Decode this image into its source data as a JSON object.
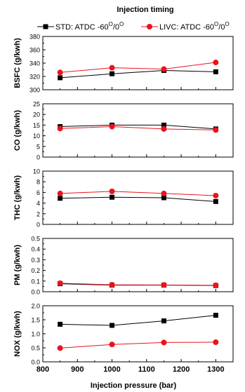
{
  "chart_data": {
    "type": "line",
    "legend": {
      "title": "Injection timing",
      "placement": "top",
      "series": [
        {
          "label": "STD: ATDC -60",
          "sup1": "O",
          "mid": "/0",
          "sup2": "O"
        },
        {
          "label": "LIVC: ATDC -60",
          "sup1": "O",
          "mid": "/0",
          "sup2": "O"
        }
      ]
    },
    "xlabel": "Injection pressure (bar)",
    "xlim": [
      800,
      1350
    ],
    "xticks": [
      "800",
      "900",
      "1000",
      "1100",
      "1200",
      "1300"
    ],
    "x": [
      850,
      1000,
      1150,
      1300
    ],
    "colors": {
      "std": "#000000",
      "livc": "#e8141c"
    },
    "grid": false,
    "panels": [
      {
        "ylabel": "BSFC (g/kwh)",
        "ylim": [
          300,
          380
        ],
        "yticks": [
          "300",
          "320",
          "340",
          "360",
          "380"
        ],
        "series": [
          {
            "key": "std",
            "values": [
              318,
              324,
              329,
              327
            ]
          },
          {
            "key": "livc",
            "values": [
              326,
              333,
              331,
              341
            ]
          }
        ]
      },
      {
        "ylabel": "CO (g/kwh)",
        "ylim": [
          0,
          25
        ],
        "yticks": [
          "0",
          "5",
          "10",
          "15",
          "20",
          "25"
        ],
        "series": [
          {
            "key": "std",
            "values": [
              14.3,
              15.0,
              15.0,
              13.2
            ]
          },
          {
            "key": "livc",
            "values": [
              13.4,
              14.3,
              13.2,
              12.7
            ]
          }
        ]
      },
      {
        "ylabel": "THC (g/kwh)",
        "ylim": [
          0,
          10
        ],
        "yticks": [
          "0",
          "2",
          "4",
          "6",
          "8",
          "10"
        ],
        "series": [
          {
            "key": "std",
            "values": [
              4.9,
              5.1,
              5.0,
              4.3
            ]
          },
          {
            "key": "livc",
            "values": [
              5.8,
              6.2,
              5.8,
              5.4
            ]
          }
        ]
      },
      {
        "ylabel": "PM (g/kwh)",
        "ylim": [
          0,
          0.5
        ],
        "yticks": [
          "0.0",
          "0.1",
          "0.2",
          "0.3",
          "0.4",
          "0.5"
        ],
        "series": [
          {
            "key": "std",
            "values": [
              0.075,
              0.062,
              0.062,
              0.058
            ]
          },
          {
            "key": "livc",
            "values": [
              0.08,
              0.065,
              0.063,
              0.06
            ]
          }
        ]
      },
      {
        "ylabel": "NOX (g/kwh)",
        "ylim": [
          0,
          2
        ],
        "yticks": [
          "0.0",
          "0.5",
          "1.0",
          "1.5",
          "2.0"
        ],
        "series": [
          {
            "key": "std",
            "values": [
              1.34,
              1.3,
              1.46,
              1.66
            ]
          },
          {
            "key": "livc",
            "values": [
              0.49,
              0.62,
              0.69,
              0.7
            ]
          }
        ]
      }
    ]
  }
}
